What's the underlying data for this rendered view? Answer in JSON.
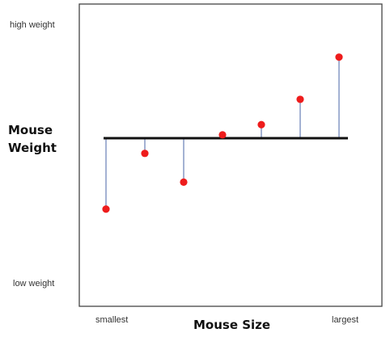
{
  "chart_data": {
    "type": "scatter",
    "title": "",
    "xlabel": "Mouse Size",
    "ylabel_lines": [
      "Mouse",
      "Weight"
    ],
    "x_tick_labels": {
      "low": "smallest",
      "high": "largest"
    },
    "y_tick_labels": {
      "high": "high weight",
      "low": "low weight"
    },
    "mean_line": 0.0,
    "ylim": [
      -1.0,
      1.0
    ],
    "xlim": [
      0,
      8
    ],
    "points": [
      {
        "x": 1,
        "y": -0.42
      },
      {
        "x": 2,
        "y": -0.09
      },
      {
        "x": 3,
        "y": -0.26
      },
      {
        "x": 4,
        "y": 0.02
      },
      {
        "x": 5,
        "y": 0.08
      },
      {
        "x": 6,
        "y": 0.23
      },
      {
        "x": 7,
        "y": 0.48
      }
    ],
    "residual_lines": true,
    "grid": false,
    "legend": false,
    "colors": {
      "point": "#ee1c1c",
      "mean_line": "#111111",
      "residual": "#8e9ec8",
      "frame": "#444444"
    }
  }
}
